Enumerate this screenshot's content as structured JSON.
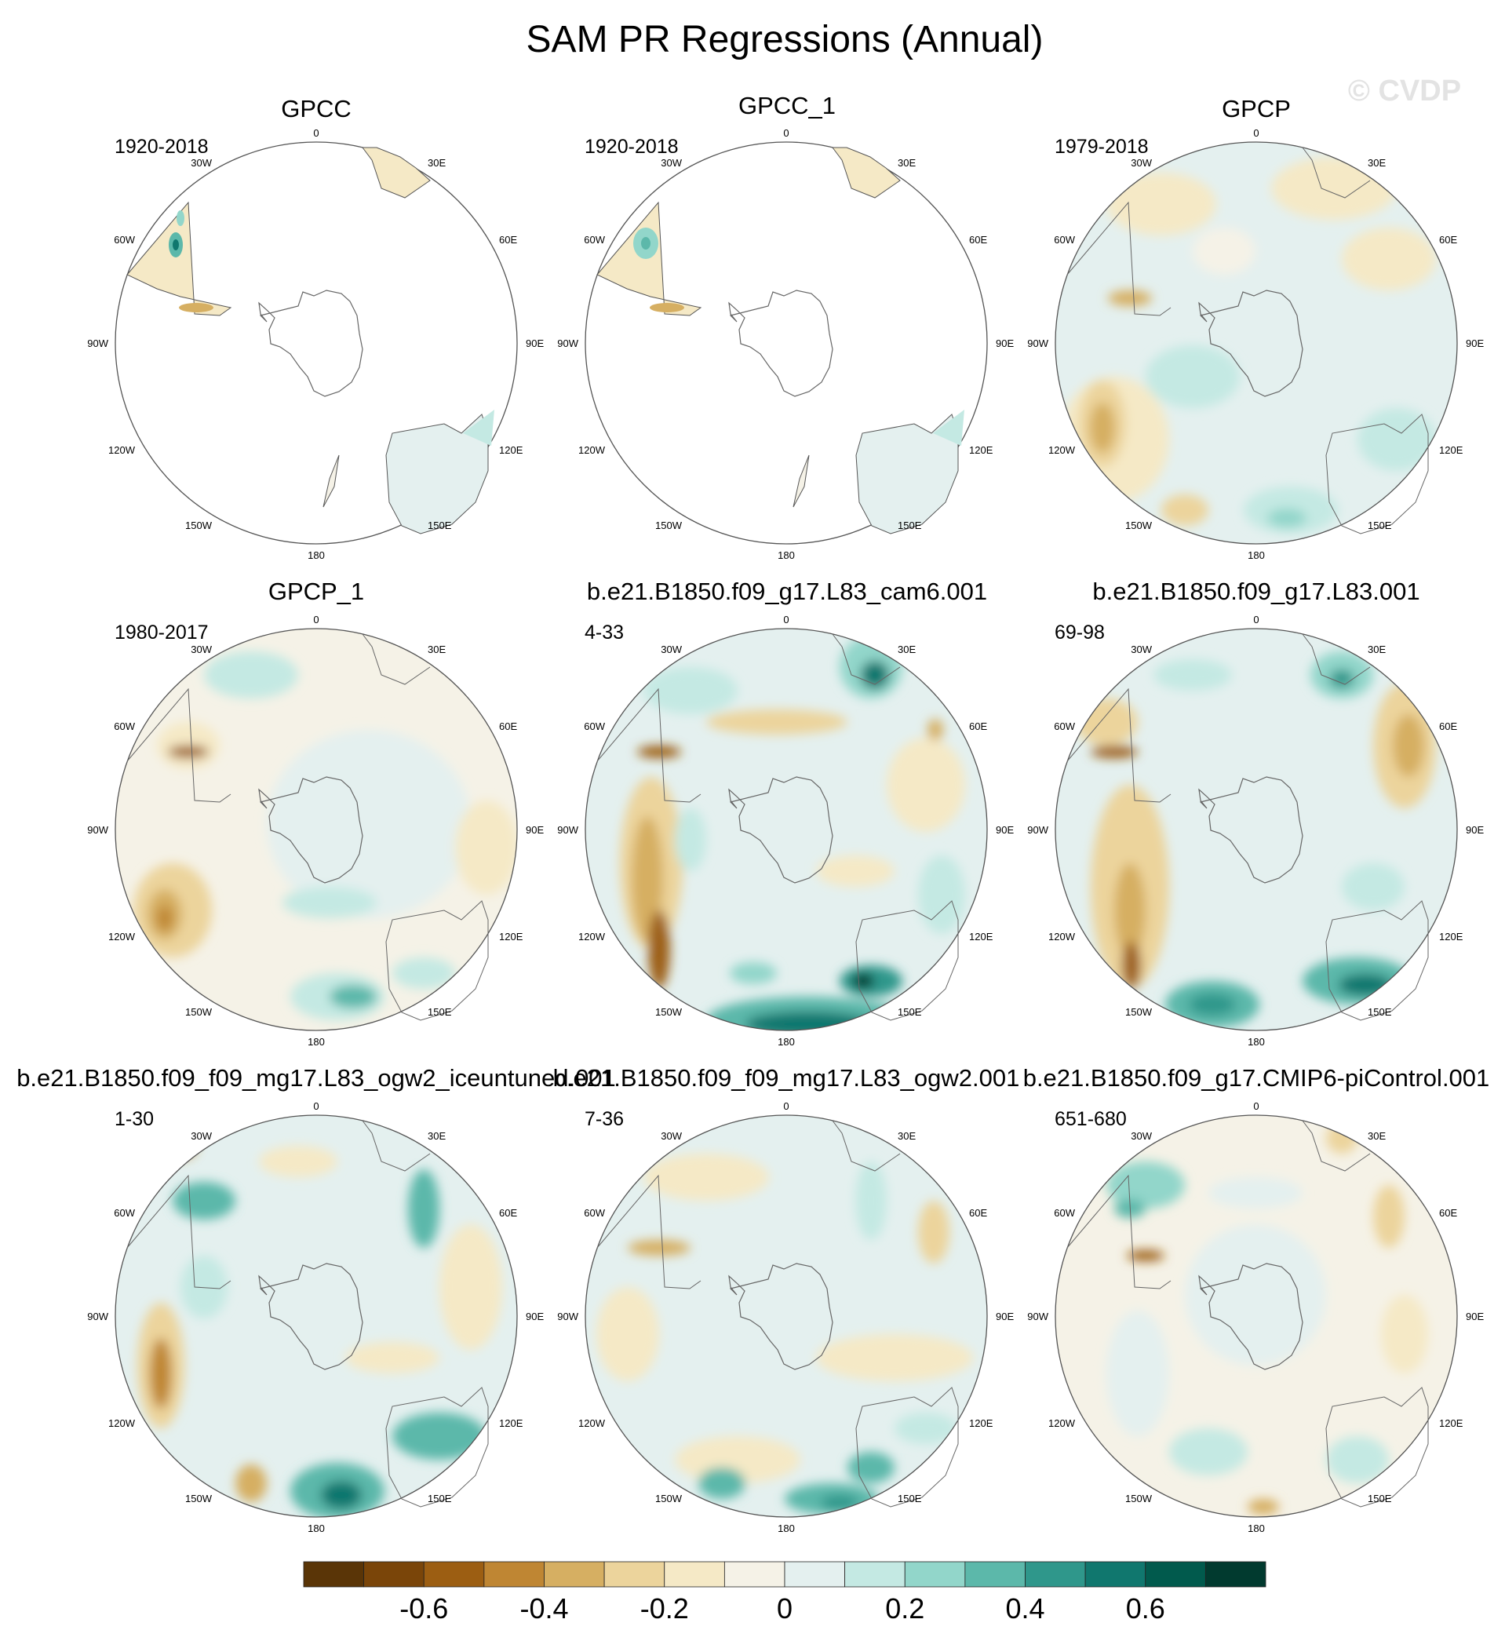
{
  "figure": {
    "title": "SAM PR Regressions (Annual)",
    "watermark": "© CVDP",
    "lon_labels": [
      "0",
      "30E",
      "60E",
      "90E",
      "120E",
      "150E",
      "180",
      "150W",
      "120W",
      "90W",
      "60W",
      "30W"
    ]
  },
  "panels": [
    {
      "title": "GPCC",
      "period": "1920-2018",
      "coverage": "land"
    },
    {
      "title": "GPCC_1",
      "period": "1920-2018",
      "coverage": "land"
    },
    {
      "title": "GPCP",
      "period": "1979-2018",
      "coverage": "full"
    },
    {
      "title": "GPCP_1",
      "period": "1980-2017",
      "coverage": "full"
    },
    {
      "title": "b.e21.B1850.f09_g17.L83_cam6.001",
      "period": "4-33",
      "coverage": "full"
    },
    {
      "title": "b.e21.B1850.f09_g17.L83.001",
      "period": "69-98",
      "coverage": "full"
    },
    {
      "title": "b.e21.B1850.f09_f09_mg17.L83_ogw2_iceuntuned.001",
      "period": "1-30",
      "coverage": "full"
    },
    {
      "title": "b.e21.B1850.f09_f09_mg17.L83_ogw2.001",
      "period": "7-36",
      "coverage": "full"
    },
    {
      "title": "b.e21.B1850.f09_g17.CMIP6-piControl.001",
      "period": "651-680",
      "coverage": "full"
    }
  ],
  "colorbar": {
    "colors": [
      "#5a3507",
      "#7a4509",
      "#9c5e12",
      "#bf8633",
      "#d6af62",
      "#ecd49c",
      "#f5e9c6",
      "#f5f2e7",
      "#e4f0ef",
      "#c4e9e3",
      "#92d6ca",
      "#5cb8aa",
      "#2f978b",
      "#10776e",
      "#015a4d",
      "#013a2f"
    ],
    "tick_labels": [
      "-0.6",
      "-0.4",
      "-0.2",
      "0",
      "0.2",
      "0.4",
      "0.6"
    ],
    "tick_values": [
      -0.6,
      -0.4,
      -0.2,
      0,
      0.2,
      0.4,
      0.6
    ],
    "range": [
      -0.8,
      0.8
    ]
  }
}
